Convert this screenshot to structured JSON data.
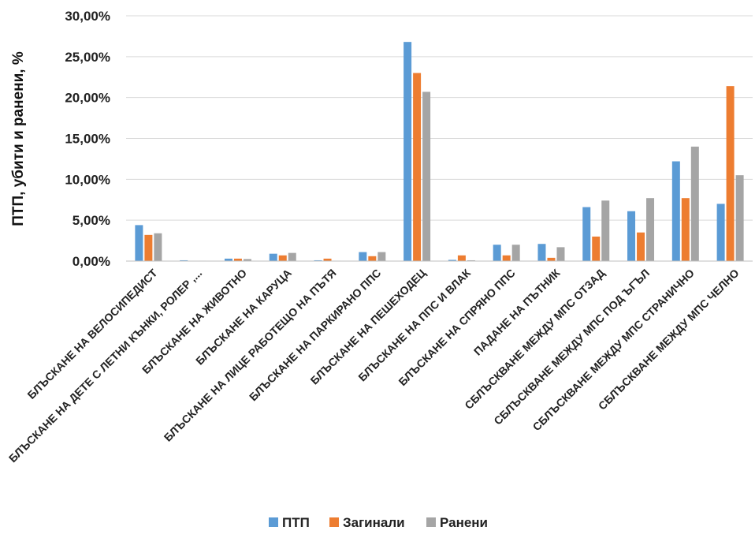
{
  "chart_data": {
    "type": "bar",
    "title": "",
    "xlabel": "",
    "ylabel": "ПТП, убити и ранени, %",
    "ylim": [
      0,
      30
    ],
    "yticks": [
      "0,00%",
      "5,00%",
      "10,00%",
      "15,00%",
      "20,00%",
      "25,00%",
      "30,00%"
    ],
    "grid": true,
    "legend_position": "bottom",
    "categories": [
      "БЛЪСКАНЕ НА ВЕЛОСИПЕДИСТ",
      "БЛЪСКАНЕ НА ДЕТЕ С ЛЕТНИ КЪНКИ, РОЛЕР ,...",
      "БЛЪСКАНЕ НА ЖИВОТНО",
      "БЛЪСКАНЕ НА КАРУЦА",
      "БЛЪСКАНЕ НА ЛИЦЕ РАБОТЕЩО НА ПЪТЯ",
      "БЛЪСКАНЕ НА ПАРКИРАНО ППС",
      "БЛЪСКАНЕ НА ПЕШЕХОДЕЦ",
      "БЛЪСКАНЕ НА ППС И ВЛАК",
      "БЛЪСКАНЕ НА СПРЯНО ППС",
      "ПАДАНЕ НА ПЪТНИК",
      "СБЛЪСКВАНЕ МЕЖДУ МПС ОТЗАД",
      "СБЛЪСКВАНЕ МЕЖДУ МПС ПОД ЪГЪЛ",
      "СБЛЪСКВАНЕ МЕЖДУ МПС СТРАНИЧНО",
      "СБЛЪСКВАНЕ МЕЖДУ МПС ЧЕЛНО"
    ],
    "series": [
      {
        "name": "ПТП",
        "color": "#5b9bd5",
        "values": [
          4.4,
          0.1,
          0.3,
          0.9,
          0.1,
          1.1,
          26.8,
          0.15,
          2.0,
          2.1,
          6.6,
          6.1,
          12.2,
          7.0
        ]
      },
      {
        "name": "Загинали",
        "color": "#ed7d31",
        "values": [
          3.2,
          0.0,
          0.3,
          0.7,
          0.3,
          0.6,
          23.0,
          0.7,
          0.7,
          0.4,
          3.0,
          3.5,
          7.7,
          21.4
        ]
      },
      {
        "name": "Ранени",
        "color": "#a5a5a5",
        "values": [
          3.4,
          0.05,
          0.25,
          1.0,
          0.05,
          1.1,
          20.7,
          0.1,
          2.0,
          1.7,
          7.4,
          7.7,
          14.0,
          10.5
        ]
      }
    ]
  }
}
